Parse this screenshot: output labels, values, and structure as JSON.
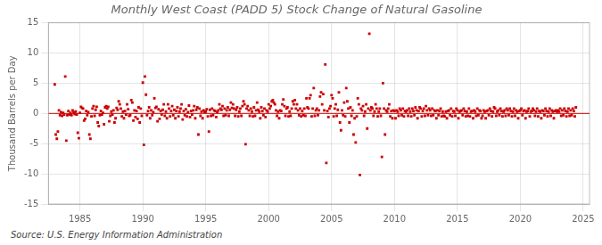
{
  "chart_data": {
    "type": "scatter",
    "title": "Monthly West Coast (PADD 5) Stock Change of Natural Gasoline",
    "ylabel": "Thousand Barrels per Day",
    "source": "Source: U.S. Energy Information Administration",
    "color": "#cc0000",
    "marker": "square",
    "hline": {
      "y": 0,
      "color": "#cc0000"
    },
    "xlim": [
      1982.5,
      2025.5
    ],
    "ylim": [
      -15,
      15
    ],
    "xticks": [
      1985,
      1990,
      1995,
      2000,
      2005,
      2010,
      2015,
      2020,
      2025
    ],
    "yticks": [
      -15,
      -10,
      -5,
      0,
      5,
      10,
      15
    ],
    "grid": true,
    "x": [
      1983.0,
      1983.083,
      1983.167,
      1983.25,
      1983.333,
      1983.417,
      1983.5,
      1983.583,
      1983.667,
      1983.75,
      1983.833,
      1983.917,
      1984.0,
      1984.083,
      1984.167,
      1984.25,
      1984.333,
      1984.417,
      1984.5,
      1984.583,
      1984.667,
      1984.75,
      1984.833,
      1984.917,
      1985.0,
      1985.083,
      1985.167,
      1985.25,
      1985.333,
      1985.417,
      1985.5,
      1985.583,
      1985.667,
      1985.75,
      1985.833,
      1985.917,
      1986.0,
      1986.083,
      1986.167,
      1986.25,
      1986.333,
      1986.417,
      1986.5,
      1986.583,
      1986.667,
      1986.75,
      1986.833,
      1986.917,
      1987.0,
      1987.083,
      1987.167,
      1987.25,
      1987.333,
      1987.417,
      1987.5,
      1987.583,
      1987.667,
      1987.75,
      1987.833,
      1987.917,
      1988.0,
      1988.083,
      1988.167,
      1988.25,
      1988.333,
      1988.417,
      1988.5,
      1988.583,
      1988.667,
      1988.75,
      1988.833,
      1988.917,
      1989.0,
      1989.083,
      1989.167,
      1989.25,
      1989.333,
      1989.417,
      1989.5,
      1989.583,
      1989.667,
      1989.75,
      1989.833,
      1989.917,
      1990.0,
      1990.083,
      1990.167,
      1990.25,
      1990.333,
      1990.417,
      1990.5,
      1990.583,
      1990.667,
      1990.75,
      1990.833,
      1990.917,
      1991.0,
      1991.083,
      1991.167,
      1991.25,
      1991.333,
      1991.417,
      1991.5,
      1991.583,
      1991.667,
      1991.75,
      1991.833,
      1991.917,
      1992.0,
      1992.083,
      1992.167,
      1992.25,
      1992.333,
      1992.417,
      1992.5,
      1992.583,
      1992.667,
      1992.75,
      1992.833,
      1992.917,
      1993.0,
      1993.083,
      1993.167,
      1993.25,
      1993.333,
      1993.417,
      1993.5,
      1993.583,
      1993.667,
      1993.75,
      1993.833,
      1993.917,
      1994.0,
      1994.083,
      1994.167,
      1994.25,
      1994.333,
      1994.417,
      1994.5,
      1994.583,
      1994.667,
      1994.75,
      1994.833,
      1994.917,
      1995.0,
      1995.083,
      1995.167,
      1995.25,
      1995.333,
      1995.417,
      1995.5,
      1995.583,
      1995.667,
      1995.75,
      1995.833,
      1995.917,
      1996.0,
      1996.083,
      1996.167,
      1996.25,
      1996.333,
      1996.417,
      1996.5,
      1996.583,
      1996.667,
      1996.75,
      1996.833,
      1996.917,
      1997.0,
      1997.083,
      1997.167,
      1997.25,
      1997.333,
      1997.417,
      1997.5,
      1997.583,
      1997.667,
      1997.75,
      1997.833,
      1997.917,
      1998.0,
      1998.083,
      1998.167,
      1998.25,
      1998.333,
      1998.417,
      1998.5,
      1998.583,
      1998.667,
      1998.75,
      1998.833,
      1998.917,
      1999.0,
      1999.083,
      1999.167,
      1999.25,
      1999.333,
      1999.417,
      1999.5,
      1999.583,
      1999.667,
      1999.75,
      1999.833,
      1999.917,
      2000.0,
      2000.083,
      2000.167,
      2000.25,
      2000.333,
      2000.417,
      2000.5,
      2000.583,
      2000.667,
      2000.75,
      2000.833,
      2000.917,
      2001.0,
      2001.083,
      2001.167,
      2001.25,
      2001.333,
      2001.417,
      2001.5,
      2001.583,
      2001.667,
      2001.75,
      2001.833,
      2001.917,
      2002.0,
      2002.083,
      2002.167,
      2002.25,
      2002.333,
      2002.417,
      2002.5,
      2002.583,
      2002.667,
      2002.75,
      2002.833,
      2002.917,
      2003.0,
      2003.083,
      2003.167,
      2003.25,
      2003.333,
      2003.417,
      2003.5,
      2003.583,
      2003.667,
      2003.75,
      2003.833,
      2003.917,
      2004.0,
      2004.083,
      2004.167,
      2004.25,
      2004.333,
      2004.417,
      2004.5,
      2004.583,
      2004.667,
      2004.75,
      2004.833,
      2004.917,
      2005.0,
      2005.083,
      2005.167,
      2005.25,
      2005.333,
      2005.417,
      2005.5,
      2005.583,
      2005.667,
      2005.75,
      2005.833,
      2005.917,
      2006.0,
      2006.083,
      2006.167,
      2006.25,
      2006.333,
      2006.417,
      2006.5,
      2006.583,
      2006.667,
      2006.75,
      2006.833,
      2006.917,
      2007.0,
      2007.083,
      2007.167,
      2007.25,
      2007.333,
      2007.417,
      2007.5,
      2007.583,
      2007.667,
      2007.75,
      2007.833,
      2007.917,
      2008.0,
      2008.083,
      2008.167,
      2008.25,
      2008.333,
      2008.417,
      2008.5,
      2008.583,
      2008.667,
      2008.75,
      2008.833,
      2008.917,
      2009.0,
      2009.083,
      2009.167,
      2009.25,
      2009.333,
      2009.417,
      2009.5,
      2009.583,
      2009.667,
      2009.75,
      2009.833,
      2009.917,
      2010.0,
      2010.083,
      2010.167,
      2010.25,
      2010.333,
      2010.417,
      2010.5,
      2010.583,
      2010.667,
      2010.75,
      2010.833,
      2010.917,
      2011.0,
      2011.083,
      2011.167,
      2011.25,
      2011.333,
      2011.417,
      2011.5,
      2011.583,
      2011.667,
      2011.75,
      2011.833,
      2011.917,
      2012.0,
      2012.083,
      2012.167,
      2012.25,
      2012.333,
      2012.417,
      2012.5,
      2012.583,
      2012.667,
      2012.75,
      2012.833,
      2012.917,
      2013.0,
      2013.083,
      2013.167,
      2013.25,
      2013.333,
      2013.417,
      2013.5,
      2013.583,
      2013.667,
      2013.75,
      2013.833,
      2013.917,
      2014.0,
      2014.083,
      2014.167,
      2014.25,
      2014.333,
      2014.417,
      2014.5,
      2014.583,
      2014.667,
      2014.75,
      2014.833,
      2014.917,
      2015.0,
      2015.083,
      2015.167,
      2015.25,
      2015.333,
      2015.417,
      2015.5,
      2015.583,
      2015.667,
      2015.75,
      2015.833,
      2015.917,
      2016.0,
      2016.083,
      2016.167,
      2016.25,
      2016.333,
      2016.417,
      2016.5,
      2016.583,
      2016.667,
      2016.75,
      2016.833,
      2016.917,
      2017.0,
      2017.083,
      2017.167,
      2017.25,
      2017.333,
      2017.417,
      2017.5,
      2017.583,
      2017.667,
      2017.75,
      2017.833,
      2017.917,
      2018.0,
      2018.083,
      2018.167,
      2018.25,
      2018.333,
      2018.417,
      2018.5,
      2018.583,
      2018.667,
      2018.75,
      2018.833,
      2018.917,
      2019.0,
      2019.083,
      2019.167,
      2019.25,
      2019.333,
      2019.417,
      2019.5,
      2019.583,
      2019.667,
      2019.75,
      2019.833,
      2019.917,
      2020.0,
      2020.083,
      2020.167,
      2020.25,
      2020.333,
      2020.417,
      2020.5,
      2020.583,
      2020.667,
      2020.75,
      2020.833,
      2020.917,
      2021.0,
      2021.083,
      2021.167,
      2021.25,
      2021.333,
      2021.417,
      2021.5,
      2021.583,
      2021.667,
      2021.75,
      2021.833,
      2021.917,
      2022.0,
      2022.083,
      2022.167,
      2022.25,
      2022.333,
      2022.417,
      2022.5,
      2022.583,
      2022.667,
      2022.75,
      2022.833,
      2022.917,
      2023.0,
      2023.083,
      2023.167,
      2023.25,
      2023.333,
      2023.417,
      2023.5,
      2023.583,
      2023.667,
      2023.75,
      2023.833,
      2023.917,
      2024.0,
      2024.083,
      2024.167,
      2024.25,
      2024.333,
      2024.417
    ],
    "values": [
      4.8,
      -3.5,
      -4.2,
      -3.0,
      0.5,
      -0.3,
      0.2,
      -0.4,
      0.1,
      -0.2,
      6.1,
      -4.5,
      -0.3,
      0.4,
      -0.2,
      0.1,
      -0.3,
      0.5,
      0.2,
      -0.1,
      0.3,
      -0.2,
      -3.2,
      -4.1,
      0.1,
      1.1,
      0.9,
      0.8,
      -1.2,
      -0.9,
      0.4,
      -0.3,
      0.2,
      -3.5,
      -4.2,
      -0.5,
      0.8,
      1.2,
      -0.4,
      0.6,
      1.1,
      -1.5,
      -2.1,
      -0.3,
      0.4,
      -0.2,
      0.1,
      -1.8,
      1.0,
      1.2,
      0.8,
      1.1,
      -1.3,
      -0.4,
      0.3,
      -0.2,
      0.5,
      -1.5,
      -0.8,
      0.9,
      0.6,
      2.0,
      1.5,
      0.8,
      -0.5,
      0.3,
      -0.8,
      0.4,
      -0.2,
      1.5,
      0.7,
      -0.4,
      -0.3,
      2.2,
      1.8,
      -1.2,
      0.5,
      -0.6,
      0.4,
      -0.9,
      1.0,
      -1.5,
      0.8,
      -0.4,
      5.1,
      -5.2,
      6.1,
      3.1,
      -0.3,
      0.4,
      1.0,
      -0.8,
      0.5,
      -0.3,
      0.2,
      2.5,
      0.9,
      1.1,
      -1.3,
      0.7,
      -0.9,
      0.4,
      -0.2,
      0.6,
      1.5,
      -0.4,
      0.3,
      -0.8,
      1.5,
      0.8,
      -0.5,
      0.4,
      1.2,
      -0.3,
      0.6,
      -0.8,
      0.4,
      1.0,
      -0.5,
      0.3,
      0.8,
      1.5,
      -1.0,
      0.4,
      -0.3,
      0.7,
      -0.5,
      0.2,
      1.3,
      -0.6,
      0.4,
      -0.2,
      0.5,
      1.2,
      -0.8,
      0.6,
      1.0,
      -3.5,
      0.8,
      -0.4,
      0.3,
      -0.8,
      0.5,
      0.2,
      0.3,
      0.7,
      -0.5,
      -3.0,
      0.6,
      -0.4,
      0.8,
      -0.3,
      0.5,
      0.4,
      -0.6,
      0.2,
      0.5,
      1.5,
      0.8,
      0.6,
      1.2,
      -0.4,
      0.8,
      -0.3,
      0.5,
      1.0,
      -0.4,
      0.6,
      1.8,
      0.9,
      1.5,
      0.8,
      -0.4,
      0.6,
      1.0,
      -0.5,
      0.3,
      0.8,
      -0.4,
      1.2,
      2.0,
      1.5,
      -5.1,
      0.8,
      1.2,
      0.5,
      -0.4,
      0.8,
      0.3,
      -0.5,
      1.0,
      -0.4,
      0.5,
      1.8,
      0.6,
      0.3,
      -0.8,
      1.0,
      0.4,
      -0.3,
      0.8,
      -0.6,
      0.5,
      0.3,
      1.5,
      0.8,
      1.2,
      2.0,
      2.2,
      1.8,
      1.5,
      0.5,
      -0.4,
      0.3,
      -0.8,
      0.5,
      0.4,
      1.5,
      2.3,
      1.2,
      -0.4,
      0.8,
      1.0,
      -0.5,
      0.3,
      -0.4,
      0.8,
      2.0,
      1.5,
      2.2,
      0.8,
      1.5,
      0.5,
      -0.3,
      0.8,
      -0.5,
      0.4,
      -0.3,
      0.8,
      -0.4,
      2.5,
      1.0,
      0.8,
      2.5,
      3.0,
      -0.5,
      0.8,
      4.2,
      -0.4,
      0.5,
      0.8,
      -0.3,
      0.5,
      2.8,
      3.5,
      1.5,
      3.2,
      0.5,
      8.1,
      -8.2,
      0.4,
      -0.6,
      0.8,
      1.2,
      3.0,
      2.5,
      -0.5,
      0.8,
      1.5,
      -0.4,
      0.6,
      3.5,
      -1.5,
      -2.8,
      0.5,
      -0.3,
      1.8,
      -0.5,
      4.2,
      2.0,
      0.8,
      -1.5,
      1.0,
      -0.4,
      0.5,
      -3.5,
      -0.8,
      -4.8,
      -0.5,
      2.5,
      1.5,
      -10.2,
      0.8,
      0.5,
      1.2,
      -0.4,
      0.3,
      1.5,
      -2.5,
      0.8,
      13.2,
      0.5,
      1.0,
      0.8,
      -0.4,
      0.3,
      1.5,
      0.8,
      -0.5,
      0.3,
      0.8,
      -0.4,
      -7.2,
      5.0,
      0.8,
      -3.5,
      0.5,
      0.3,
      0.8,
      1.5,
      -0.5,
      0.4,
      -0.8,
      0.5,
      0.4,
      -0.8,
      0.5,
      0.3,
      -0.4,
      0.8,
      0.5,
      -0.3,
      0.8,
      -0.5,
      0.4,
      0.3,
      0.5,
      -0.4,
      0.8,
      0.3,
      -0.5,
      0.8,
      0.4,
      -0.3,
      1.0,
      0.5,
      -0.8,
      0.4,
      1.0,
      0.8,
      -0.5,
      0.4,
      0.8,
      -0.4,
      1.2,
      0.5,
      -0.3,
      0.8,
      0.5,
      -0.4,
      0.8,
      -0.3,
      0.5,
      0.4,
      -0.8,
      0.5,
      -0.3,
      0.4,
      0.8,
      -0.5,
      0.3,
      -0.4,
      -0.5,
      0.3,
      -0.8,
      0.4,
      0.5,
      -0.3,
      0.8,
      -0.5,
      0.4,
      0.3,
      -0.4,
      0.8,
      0.5,
      -0.8,
      0.3,
      0.4,
      0.5,
      -0.3,
      0.8,
      0.4,
      -0.5,
      0.3,
      -0.4,
      0.8,
      -0.5,
      0.3,
      0.4,
      -0.8,
      0.5,
      0.3,
      -0.4,
      0.8,
      -0.3,
      0.5,
      0.4,
      -0.8,
      -0.4,
      0.5,
      0.3,
      -0.8,
      0.4,
      0.5,
      -0.3,
      0.8,
      0.4,
      -0.5,
      0.3,
      1.0,
      0.8,
      -0.4,
      0.3,
      0.5,
      -0.3,
      0.8,
      0.4,
      -0.5,
      0.3,
      0.5,
      -0.4,
      0.8,
      0.5,
      -0.3,
      0.8,
      0.4,
      -0.5,
      0.3,
      0.8,
      -0.4,
      0.5,
      0.3,
      -0.8,
      0.4,
      0.5,
      0.8,
      -0.3,
      0.4,
      0.5,
      -0.8,
      0.3,
      0.4,
      0.8,
      -0.5,
      0.3,
      0.4,
      0.8,
      0.5,
      -0.4,
      0.3,
      0.8,
      -0.5,
      0.4,
      0.3,
      -0.8,
      0.5,
      0.4,
      -0.3,
      0.8,
      0.4,
      -0.5,
      0.3,
      0.8,
      -0.4,
      0.5,
      0.3,
      -0.8,
      0.4,
      0.5,
      0.3,
      0.5,
      0.3,
      0.8,
      -0.4,
      0.5,
      -0.3,
      0.8,
      0.4,
      -0.5,
      0.3,
      0.8,
      -0.4,
      0.5,
      -0.3,
      0.8,
      0.4,
      -0.5,
      1.0
    ]
  }
}
